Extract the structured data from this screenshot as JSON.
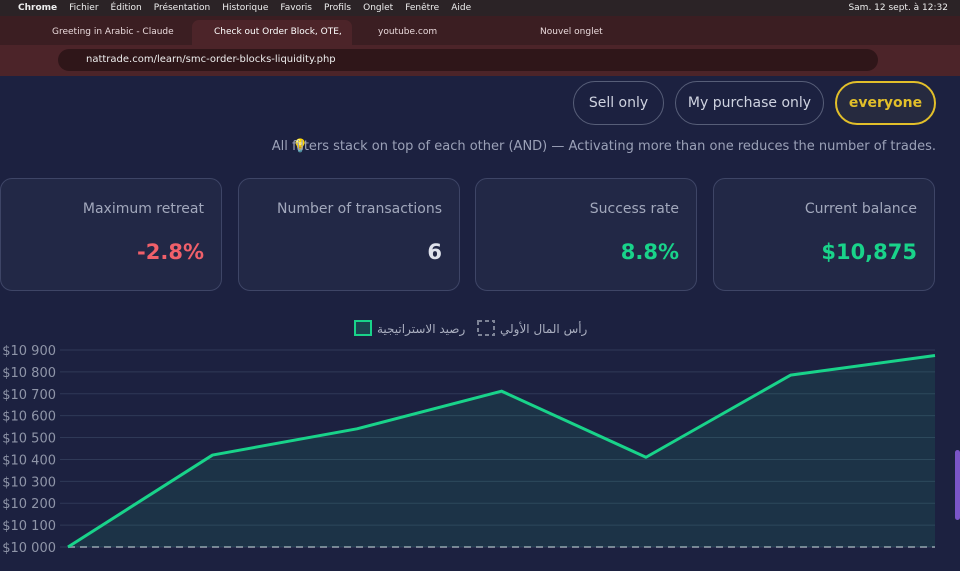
{
  "menubar": {
    "items": [
      "Chrome",
      "Fichier",
      "Édition",
      "Présentation",
      "Historique",
      "Favoris",
      "Profils",
      "Onglet",
      "Fenêtre",
      "Aide"
    ],
    "datetime": "Sam. 12 sept. à 12:32"
  },
  "tabs": [
    "Greeting in Arabic - Claude",
    "Check out Order Block, OTE,",
    "youtube.com",
    "Nouvel onglet"
  ],
  "url": "nattrade.com/learn/smc-order-blocks-liquidity.php",
  "filters": [
    "Sell only",
    "My purchase only",
    "everyone"
  ],
  "note": "All filters stack on top of each other (AND) — Activating more than one reduces the number of trades.",
  "stats": [
    {
      "label": "Maximum retreat",
      "value": "-2.8%"
    },
    {
      "label": "Number of transactions",
      "value": "6"
    },
    {
      "label": "Success rate",
      "value": "8.8%"
    },
    {
      "label": "Current balance",
      "value": "$10,875"
    }
  ],
  "chart_data": {
    "type": "line",
    "categories": [
      null,
      null,
      null,
      null,
      null,
      null,
      null
    ],
    "series": [
      {
        "name": "رصيد الاستراتيجية",
        "color": "#19d38a",
        "values": [
          10000,
          10420,
          10540,
          10712,
          10410,
          10785,
          10875
        ]
      },
      {
        "name": "رأس المال الأولي",
        "color": "#7d8396",
        "values": [
          10000,
          10000,
          10000,
          10000,
          10000,
          10000,
          10000
        ]
      }
    ],
    "ylim": [
      10000,
      10900
    ],
    "yticks": [
      {
        "value": 10000,
        "label": "$10 000"
      },
      {
        "value": 10100,
        "label": "$10 100"
      },
      {
        "value": 10200,
        "label": "$10 200"
      },
      {
        "value": 10300,
        "label": "$10 300"
      },
      {
        "value": 10400,
        "label": "$10 400"
      },
      {
        "value": 10500,
        "label": "$10 500"
      },
      {
        "value": 10600,
        "label": "$10 600"
      },
      {
        "value": 10700,
        "label": "$10 700"
      },
      {
        "value": 10800,
        "label": "$10 800"
      },
      {
        "value": 10900,
        "label": "$10 900"
      }
    ],
    "grid": true
  }
}
